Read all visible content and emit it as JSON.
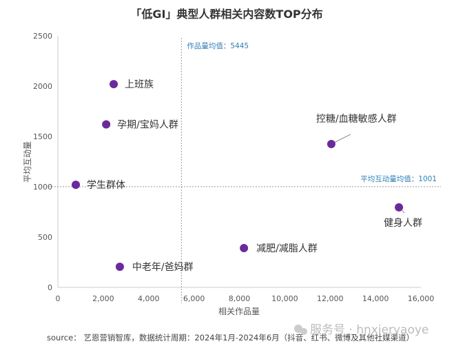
{
  "chart_data": {
    "type": "scatter",
    "title": "「低GI」典型人群相关内容数TOP分布",
    "xlabel": "相关作品量",
    "ylabel": "平均互动量",
    "xlim": [
      0,
      16000
    ],
    "ylim": [
      0,
      2500
    ],
    "xticks": [
      "0",
      "2,000",
      "4,000",
      "6,000",
      "8,000",
      "10,000",
      "12,000",
      "14,000",
      "16,000"
    ],
    "yticks": [
      "0",
      "500",
      "1000",
      "1500",
      "2000",
      "2500"
    ],
    "grid": false,
    "color": "#6b2a9c",
    "points": [
      {
        "label": "上班族",
        "x": 2460,
        "y": 2020
      },
      {
        "label": "孕期/宝妈人群",
        "x": 2130,
        "y": 1620
      },
      {
        "label": "学生群体",
        "x": 790,
        "y": 1020
      },
      {
        "label": "中老年/爸妈群",
        "x": 2730,
        "y": 205
      },
      {
        "label": "减肥/减脂人群",
        "x": 8200,
        "y": 390
      },
      {
        "label": "控糖/血糖敏感人群",
        "x": 12050,
        "y": 1425
      },
      {
        "label": "健身人群",
        "x": 15030,
        "y": 795
      }
    ],
    "mean_x": {
      "label": "作品量均值：5445",
      "value": 5445
    },
    "mean_y": {
      "label": "平均互动量均值：1001",
      "value": 1001
    }
  },
  "source": "source： 艺恩营销智库，数据统计周期：2024年1月-2024年6月（抖音、红书、微博及其他社媒渠道）",
  "watermark": "服务号 · hnxieryaoye"
}
